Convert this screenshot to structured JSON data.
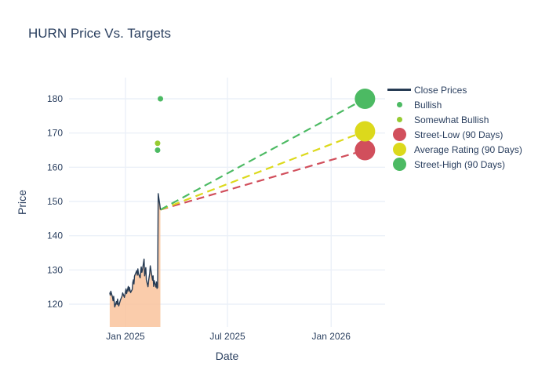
{
  "title": "HURN Price Vs. Targets",
  "chart_data": {
    "type": "line",
    "title": "HURN Price Vs. Targets",
    "xlabel": "Date",
    "ylabel": "Price",
    "yticks": [
      120,
      130,
      140,
      150,
      160,
      170,
      180
    ],
    "xticks": [
      {
        "label": "Jan 2025",
        "date": "2025-01-01"
      },
      {
        "label": "Jul 2025",
        "date": "2025-07-01"
      },
      {
        "label": "Jan 2026",
        "date": "2026-01-01"
      }
    ],
    "ylim": [
      113.3,
      186.3
    ],
    "grid": true,
    "legend_position": "right",
    "series": [
      {
        "name": "Close Prices",
        "type": "line",
        "color": "#263b54",
        "fill_color": "#f9c39c",
        "dates": [
          "2024-12-04",
          "2024-12-05",
          "2024-12-06",
          "2024-12-09",
          "2024-12-10",
          "2024-12-11",
          "2024-12-12",
          "2024-12-13",
          "2024-12-16",
          "2024-12-17",
          "2024-12-18",
          "2024-12-19",
          "2024-12-20",
          "2024-12-23",
          "2024-12-26",
          "2024-12-27",
          "2024-12-30",
          "2025-01-02",
          "2025-01-03",
          "2025-01-06",
          "2025-01-07",
          "2025-01-08",
          "2025-01-10",
          "2025-01-13",
          "2025-01-14",
          "2025-01-15",
          "2025-01-16",
          "2025-01-17",
          "2025-01-21",
          "2025-01-22",
          "2025-01-23",
          "2025-01-24",
          "2025-01-27",
          "2025-01-28",
          "2025-01-29",
          "2025-01-30",
          "2025-01-31",
          "2025-02-03",
          "2025-02-04",
          "2025-02-05",
          "2025-02-06",
          "2025-02-07",
          "2025-02-10",
          "2025-02-11",
          "2025-02-12",
          "2025-02-13",
          "2025-02-14",
          "2025-02-18",
          "2025-02-19",
          "2025-02-20",
          "2025-02-21",
          "2025-02-24",
          "2025-02-25",
          "2025-02-26",
          "2025-02-27",
          "2025-02-28",
          "2025-03-03",
          "2025-03-04"
        ],
        "values": [
          123.4,
          122.6,
          123.8,
          122.0,
          121.0,
          122.3,
          120.8,
          119.2,
          120.8,
          119.9,
          121.5,
          120.3,
          119.5,
          121.2,
          122.4,
          123.3,
          122.0,
          124.5,
          123.1,
          125.2,
          123.8,
          124.9,
          123.4,
          124.3,
          126.3,
          127.1,
          125.9,
          128.2,
          129.8,
          128.5,
          130.3,
          128.9,
          127.7,
          129.6,
          130.9,
          129.3,
          130.0,
          133.2,
          128.3,
          129.4,
          130.7,
          127.1,
          125.1,
          126.9,
          128.0,
          129.0,
          131.2,
          127.0,
          128.3,
          125.2,
          126.9,
          125.0,
          126.5,
          124.6,
          124.9,
          152.3,
          149.0,
          147.6
        ]
      },
      {
        "name": "Bullish",
        "type": "scatter",
        "color": "#4cba63",
        "marker_size": 7,
        "points": [
          {
            "date": "2025-03-04",
            "value": 180
          },
          {
            "date": "2025-02-27",
            "value": 165
          }
        ]
      },
      {
        "name": "Somewhat Bullish",
        "type": "scatter",
        "color": "#97cb31",
        "marker_size": 7,
        "points": [
          {
            "date": "2025-02-27",
            "value": 167
          }
        ]
      },
      {
        "name": "Street-Low (90 Days)",
        "type": "dashed_line",
        "color": "#d14f5c",
        "marker_size": 26,
        "start": {
          "date": "2025-03-04",
          "value": 147.6
        },
        "end": {
          "date": "2026-03-02",
          "value": 165
        }
      },
      {
        "name": "Average Rating (90 Days)",
        "type": "dashed_line",
        "color": "#dcd91c",
        "marker_size": 26,
        "start": {
          "date": "2025-03-04",
          "value": 147.6
        },
        "end": {
          "date": "2026-03-02",
          "value": 170.5
        }
      },
      {
        "name": "Street-High (90 Days)",
        "type": "dashed_line",
        "color": "#4cba63",
        "marker_size": 26,
        "start": {
          "date": "2025-03-04",
          "value": 147.6
        },
        "end": {
          "date": "2026-03-02",
          "value": 180
        }
      }
    ],
    "legend": [
      {
        "label": "Close Prices",
        "swatch": "line",
        "color": "#263b54"
      },
      {
        "label": "Bullish",
        "swatch": "dot",
        "color": "#4cba63"
      },
      {
        "label": "Somewhat Bullish",
        "swatch": "dot",
        "color": "#97cb31"
      },
      {
        "label": "Street-Low (90 Days)",
        "swatch": "circle",
        "color": "#d14f5c"
      },
      {
        "label": "Average Rating (90 Days)",
        "swatch": "circle",
        "color": "#dcd91c"
      },
      {
        "label": "Street-High (90 Days)",
        "swatch": "circle",
        "color": "#4cba63"
      }
    ],
    "colors": {
      "text": "#2a3f5f",
      "grid": "#ebf0f8",
      "background": "#ffffff"
    }
  }
}
